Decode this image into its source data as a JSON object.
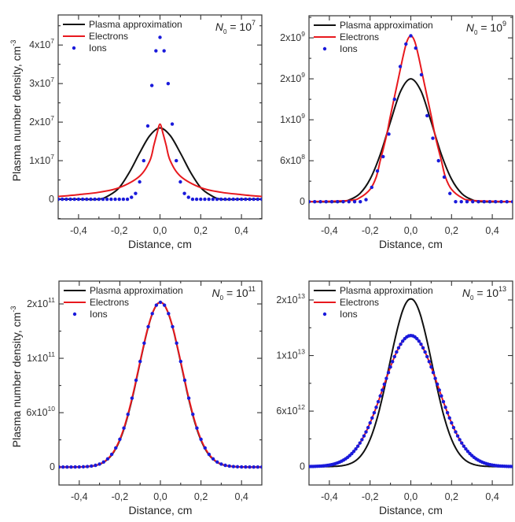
{
  "figure": {
    "colors": {
      "plasma": "#111111",
      "electrons": "#e8191e",
      "ions": "#1a1adb"
    }
  },
  "chart_data": [
    {
      "type": "line",
      "title": "",
      "annotation": {
        "prefix": "N",
        "subscript": "0",
        "eq": " = 10",
        "exp": "7"
      },
      "xlabel": "Distance, cm",
      "ylabel": "Plasma number density, cm",
      "ylabel_exp": "-3",
      "xlim": [
        -0.5,
        0.5
      ],
      "ylim_units": [
        -0.51,
        4.78
      ],
      "x_ticks": [
        -0.4,
        -0.2,
        0.0,
        0.2,
        0.4
      ],
      "x_tick_labels": [
        "-0,4",
        "-0,2",
        "0,0",
        "0,2",
        "0,4"
      ],
      "y_ticks": [
        {
          "u": 0,
          "base": "0",
          "exp": ""
        },
        {
          "u": 1,
          "base": "1x10",
          "exp": "7"
        },
        {
          "u": 2,
          "base": "2x10",
          "exp": "7"
        },
        {
          "u": 3,
          "base": "3x10",
          "exp": "7"
        },
        {
          "u": 4,
          "base": "4x10",
          "exp": "7"
        }
      ],
      "y_unit_value": 10000000.0,
      "legend": {
        "placement": "top-left",
        "entries": [
          "Plasma approximation",
          "Electrons",
          "Ions"
        ]
      },
      "series": [
        {
          "name": "Plasma approximation",
          "kind": "line",
          "x": [
            -0.5,
            -0.4,
            -0.3,
            -0.25,
            -0.2,
            -0.15,
            -0.1,
            -0.05,
            0.0,
            0.05,
            0.1,
            0.15,
            0.2,
            0.25,
            0.3,
            0.4,
            0.5
          ],
          "y": [
            0.0,
            0.0,
            0.0,
            0.1,
            0.3,
            0.7,
            1.2,
            1.65,
            1.85,
            1.65,
            1.2,
            0.7,
            0.3,
            0.1,
            0.0,
            0.0,
            0.0
          ]
        },
        {
          "name": "Electrons",
          "kind": "line",
          "x": [
            -0.5,
            -0.4,
            -0.3,
            -0.2,
            -0.1,
            -0.05,
            -0.03,
            -0.015,
            0.0,
            0.015,
            0.03,
            0.05,
            0.1,
            0.2,
            0.3,
            0.4,
            0.5
          ],
          "y": [
            0.07,
            0.12,
            0.18,
            0.3,
            0.6,
            1.0,
            1.4,
            1.7,
            1.95,
            1.7,
            1.4,
            1.0,
            0.6,
            0.3,
            0.18,
            0.12,
            0.07
          ]
        },
        {
          "name": "Ions",
          "kind": "points",
          "x": [
            -0.5,
            -0.48,
            -0.46,
            -0.44,
            -0.42,
            -0.4,
            -0.38,
            -0.36,
            -0.34,
            -0.32,
            -0.3,
            -0.28,
            -0.26,
            -0.24,
            -0.22,
            -0.2,
            -0.18,
            -0.16,
            -0.14,
            -0.12,
            -0.1,
            -0.08,
            -0.06,
            -0.04,
            -0.02,
            0.0,
            0.02,
            0.04,
            0.06,
            0.08,
            0.1,
            0.12,
            0.14,
            0.16,
            0.18,
            0.2,
            0.22,
            0.24,
            0.26,
            0.28,
            0.3,
            0.32,
            0.34,
            0.36,
            0.38,
            0.4,
            0.42,
            0.44,
            0.46,
            0.48,
            0.5
          ],
          "y": [
            0,
            0,
            0,
            0,
            0,
            0,
            0,
            0,
            0,
            0,
            0,
            0,
            0,
            0,
            0,
            0,
            0,
            0,
            0.05,
            0.15,
            0.45,
            1.0,
            1.9,
            2.95,
            3.85,
            4.2,
            3.85,
            3.0,
            1.95,
            1.0,
            0.45,
            0.15,
            0.05,
            0,
            0,
            0,
            0,
            0,
            0,
            0,
            0,
            0,
            0,
            0,
            0,
            0,
            0,
            0,
            0,
            0,
            0
          ]
        }
      ]
    },
    {
      "type": "line",
      "title": "",
      "annotation": {
        "prefix": "N",
        "subscript": "0",
        "eq": " = 10",
        "exp": "9"
      },
      "xlabel": "Distance, cm",
      "ylabel": "",
      "ylabel_exp": "",
      "xlim": [
        -0.5,
        0.5
      ],
      "ylim_units": [
        -0.42,
        4.54
      ],
      "x_ticks": [
        -0.4,
        -0.2,
        0.0,
        0.2,
        0.4
      ],
      "x_tick_labels": [
        "-0,4",
        "-0,2",
        "0,0",
        "0,2",
        "0,4"
      ],
      "y_ticks": [
        {
          "u": 0,
          "base": "0",
          "exp": ""
        },
        {
          "u": 1,
          "base": "6x10",
          "exp": "8"
        },
        {
          "u": 2,
          "base": "1x10",
          "exp": "9"
        },
        {
          "u": 3,
          "base": "2x10",
          "exp": "9"
        },
        {
          "u": 4,
          "base": "2x10",
          "exp": "9"
        }
      ],
      "legend": {
        "placement": "top-left",
        "entries": [
          "Plasma approximation",
          "Electrons",
          "Ions"
        ]
      },
      "series": [
        {
          "name": "Plasma approximation",
          "kind": "line",
          "x": [
            -0.5,
            -0.35,
            -0.3,
            -0.25,
            -0.2,
            -0.15,
            -0.1,
            -0.05,
            0.0,
            0.05,
            0.1,
            0.15,
            0.2,
            0.25,
            0.3,
            0.35,
            0.5
          ],
          "y": [
            0,
            0,
            0.05,
            0.2,
            0.55,
            1.15,
            1.95,
            2.7,
            3.0,
            2.7,
            1.95,
            1.15,
            0.55,
            0.2,
            0.05,
            0,
            0
          ]
        },
        {
          "name": "Electrons",
          "kind": "line",
          "x": [
            -0.5,
            -0.3,
            -0.25,
            -0.2,
            -0.17,
            -0.15,
            -0.12,
            -0.1,
            -0.07,
            -0.04,
            -0.02,
            0.0,
            0.02,
            0.04,
            0.07,
            0.1,
            0.12,
            0.15,
            0.17,
            0.2,
            0.25,
            0.3,
            0.5
          ],
          "y": [
            0,
            0.03,
            0.1,
            0.3,
            0.6,
            1.0,
            1.6,
            2.1,
            2.8,
            3.5,
            3.9,
            4.05,
            3.9,
            3.5,
            2.8,
            2.1,
            1.6,
            1.0,
            0.6,
            0.3,
            0.1,
            0.03,
            0
          ]
        },
        {
          "name": "Ions",
          "kind": "points",
          "x": [
            -0.5,
            -0.472,
            -0.444,
            -0.416,
            -0.388,
            -0.36,
            -0.332,
            -0.304,
            -0.276,
            -0.248,
            -0.22,
            -0.192,
            -0.164,
            -0.136,
            -0.108,
            -0.08,
            -0.052,
            -0.024,
            0.0,
            0.024,
            0.052,
            0.08,
            0.108,
            0.136,
            0.164,
            0.192,
            0.22,
            0.248,
            0.276,
            0.304,
            0.332,
            0.36,
            0.388,
            0.416,
            0.444,
            0.472,
            0.5
          ],
          "y": [
            0,
            0,
            0,
            0,
            0,
            0,
            0,
            0,
            0,
            0,
            0.05,
            0.35,
            0.75,
            1.1,
            1.65,
            2.5,
            3.3,
            3.85,
            4.05,
            3.75,
            3.1,
            2.1,
            1.55,
            1.0,
            0.6,
            0.2,
            0,
            0,
            0,
            0,
            0,
            0,
            0,
            0,
            0,
            0,
            0
          ]
        }
      ]
    },
    {
      "type": "line",
      "title": "",
      "annotation": {
        "prefix": "N",
        "subscript": "0",
        "eq": " = 10",
        "exp": "11"
      },
      "xlabel": "Distance, cm",
      "ylabel": "Plasma number density, cm",
      "ylabel_exp": "-3",
      "xlim": [
        -0.5,
        0.5
      ],
      "ylim_units": [
        -0.33,
        3.42
      ],
      "x_ticks": [
        -0.4,
        -0.2,
        0.0,
        0.2,
        0.4
      ],
      "x_tick_labels": [
        "-0,4",
        "-0,2",
        "0,0",
        "0,2",
        "0,4"
      ],
      "y_ticks": [
        {
          "u": 0,
          "base": "0",
          "exp": ""
        },
        {
          "u": 1,
          "base": "6x10",
          "exp": "10"
        },
        {
          "u": 2,
          "base": "1x10",
          "exp": "11"
        },
        {
          "u": 3,
          "base": "2x10",
          "exp": "11"
        }
      ],
      "legend": {
        "placement": "top-left",
        "entries": [
          "Plasma approximation",
          "Electrons",
          "Ions"
        ]
      },
      "series": [
        {
          "name": "Plasma approximation",
          "kind": "line",
          "gauss": {
            "peak": 3.03,
            "sigma": 0.105
          }
        },
        {
          "name": "Electrons",
          "kind": "line",
          "gauss": {
            "peak": 3.03,
            "sigma": 0.106
          }
        },
        {
          "name": "Ions",
          "kind": "points",
          "gauss": {
            "peak": 3.03,
            "sigma": 0.106
          },
          "step": 0.02
        }
      ]
    },
    {
      "type": "line",
      "title": "",
      "annotation": {
        "prefix": "N",
        "subscript": "0",
        "eq": " = 10",
        "exp": "13"
      },
      "xlabel": "Distance, cm",
      "ylabel": "",
      "ylabel_exp": "",
      "xlim": [
        -0.5,
        0.5
      ],
      "ylim_units": [
        -0.33,
        3.34
      ],
      "x_ticks": [
        -0.4,
        -0.2,
        0.0,
        0.2,
        0.4
      ],
      "x_tick_labels": [
        "-0,4",
        "-0,2",
        "0,0",
        "0,2",
        "0,4"
      ],
      "y_ticks": [
        {
          "u": 0,
          "base": "0",
          "exp": ""
        },
        {
          "u": 1,
          "base": "6x10",
          "exp": "12"
        },
        {
          "u": 2,
          "base": "1x10",
          "exp": "13"
        },
        {
          "u": 3,
          "base": "2x10",
          "exp": "13"
        }
      ],
      "legend": {
        "placement": "top-left",
        "entries": [
          "Plasma approximation",
          "Electrons",
          "Ions"
        ]
      },
      "series": [
        {
          "name": "Plasma approximation",
          "kind": "line",
          "gauss": {
            "peak": 3.02,
            "sigma": 0.105
          }
        },
        {
          "name": "Electrons",
          "kind": "line",
          "gauss": {
            "peak": 2.36,
            "sigma": 0.135
          }
        },
        {
          "name": "Ions",
          "kind": "points",
          "gauss": {
            "peak": 2.36,
            "sigma": 0.135
          },
          "step": 0.01
        }
      ]
    }
  ]
}
